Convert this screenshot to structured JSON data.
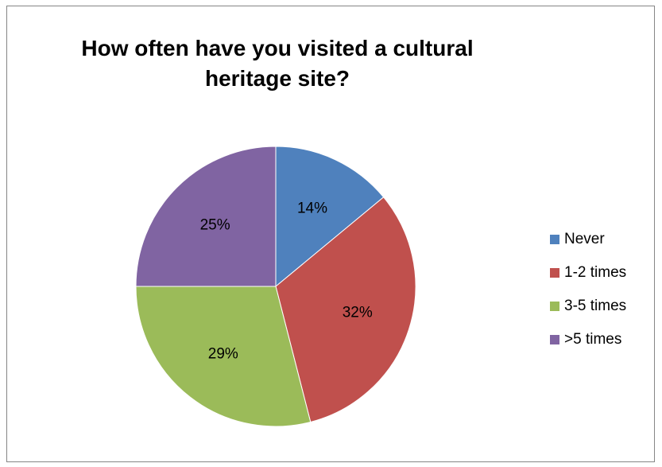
{
  "chart_data": {
    "type": "pie",
    "title": "How often have you visited a cultural heritage site?",
    "title_lines": [
      "How often have you visited a cultural",
      "heritage site?"
    ],
    "categories": [
      "Never",
      "1-2 times",
      "3-5 times",
      ">5 times"
    ],
    "values": [
      14,
      32,
      29,
      25
    ],
    "labels": [
      "14%",
      "32%",
      "29%",
      "25%"
    ],
    "colors": [
      "#4F81BD",
      "#C0504D",
      "#9BBB59",
      "#8064A2"
    ],
    "legend_position": "right"
  }
}
